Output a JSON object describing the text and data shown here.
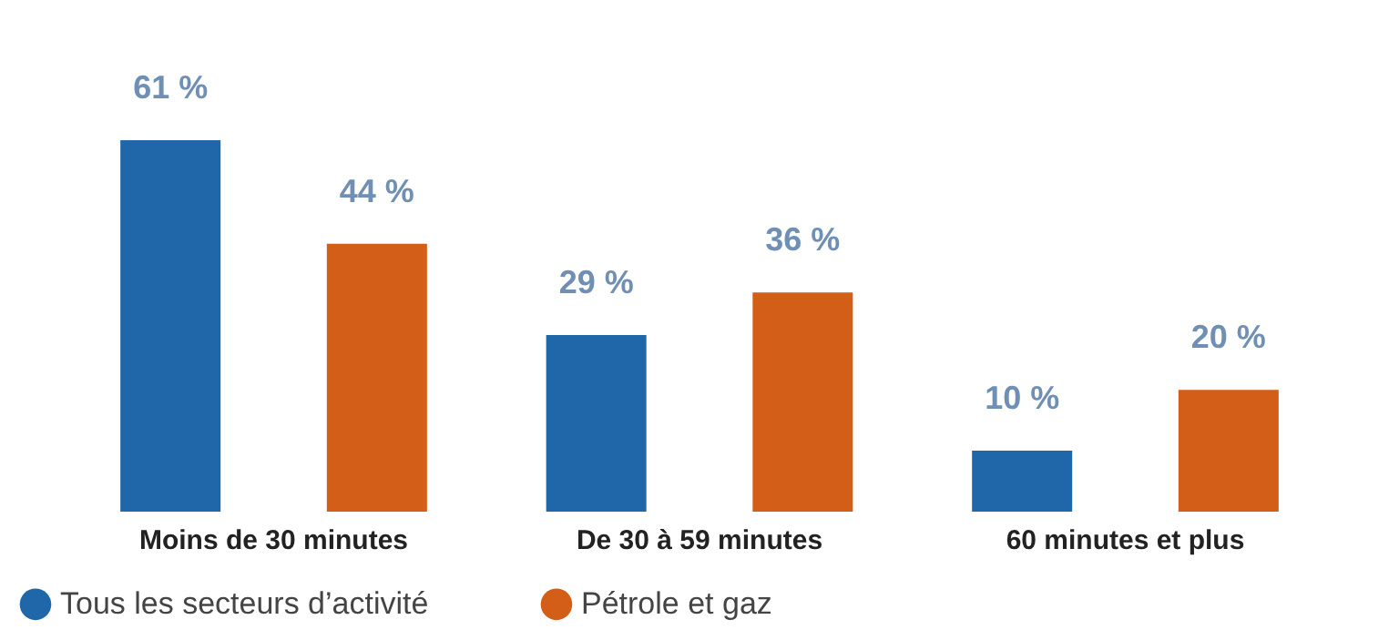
{
  "chart_data": {
    "type": "bar",
    "categories": [
      "Moins de 30 minutes",
      "De 30 à 59 minutes",
      "60 minutes et plus"
    ],
    "series": [
      {
        "name": "Tous les secteurs d’activité",
        "color": "#1f67a8",
        "values": [
          61,
          29,
          10
        ],
        "value_labels": [
          "61 %",
          "29 %",
          "10 %"
        ]
      },
      {
        "name": "Pétrole et gaz",
        "color": "#d35e17",
        "values": [
          44,
          36,
          20
        ],
        "value_labels": [
          "44 %",
          "36 %",
          "20 %"
        ]
      }
    ],
    "tick_labels": "x",
    "grid": false,
    "legend": "bottom"
  }
}
